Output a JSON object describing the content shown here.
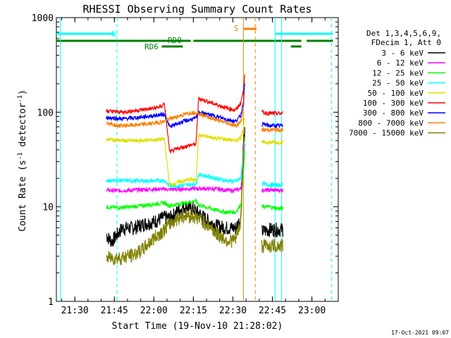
{
  "chart_data": {
    "type": "line",
    "title": "RHESSI Observing Summary Count Rates",
    "xlabel": "Start Time (19-Nov-10 21:28:02)",
    "ylabel_main": "Count Rate (s",
    "ylabel_sup1": "-1",
    "ylabel_mid": " detector",
    "ylabel_sup2": "-1",
    "ylabel_end": ")",
    "yscale": "log",
    "xlim": [
      "21:23",
      "23:10"
    ],
    "ylim": [
      1,
      1000
    ],
    "x_ticks": [
      "21:30",
      "21:45",
      "22:00",
      "22:15",
      "22:30",
      "22:45",
      "23:00"
    ],
    "y_ticks": [
      "1",
      "10",
      "100",
      "1000"
    ],
    "footer": "17-Oct-2021 09:07",
    "legend_header": [
      "Det 1,3,4,5,6,9,",
      "FDecim 1, Att 0"
    ],
    "series": [
      {
        "name": "3 - 6 keV",
        "color": "#000000",
        "points": [
          [
            "21:42",
            5.0
          ],
          [
            "21:44",
            4.3
          ],
          [
            "21:48",
            6.0
          ],
          [
            "21:52",
            6.0
          ],
          [
            "21:56",
            6.6
          ],
          [
            "22:00",
            7.0
          ],
          [
            "22:04",
            7.8
          ],
          [
            "22:06",
            7.6
          ],
          [
            "22:09",
            9.0
          ],
          [
            "22:12",
            10.2
          ],
          [
            "22:15",
            9.5
          ],
          [
            "22:18",
            8.2
          ],
          [
            "22:21",
            7.0
          ],
          [
            "22:24",
            6.3
          ],
          [
            "22:28",
            6.0
          ],
          [
            "22:31",
            6.0
          ],
          [
            "22:33",
            7.5
          ],
          [
            "22:34",
            48
          ],
          [
            "22:34.5",
            60
          ]
        ],
        "points2": [
          [
            "22:41",
            5.5
          ],
          [
            "22:44",
            5.8
          ],
          [
            "22:47",
            5.8
          ],
          [
            "22:49",
            5.8
          ]
        ]
      },
      {
        "name": "6 - 12 keV",
        "color": "#ff00ff",
        "points": [
          [
            "21:42",
            15
          ],
          [
            "21:46",
            14.8
          ],
          [
            "21:52",
            15
          ],
          [
            "21:58",
            15.3
          ],
          [
            "22:04",
            15.4
          ],
          [
            "22:06",
            15.2
          ],
          [
            "22:12",
            15.5
          ],
          [
            "22:18",
            15.6
          ],
          [
            "22:24",
            15.4
          ],
          [
            "22:30",
            14.8
          ],
          [
            "22:33",
            15.5
          ],
          [
            "22:34",
            30
          ],
          [
            "22:34.5",
            48
          ]
        ],
        "points2": [
          [
            "22:41",
            15
          ],
          [
            "22:44",
            15
          ],
          [
            "22:47",
            15
          ],
          [
            "22:49",
            15
          ]
        ]
      },
      {
        "name": "12 - 25 keV",
        "color": "#00ff00",
        "points": [
          [
            "21:42",
            10
          ],
          [
            "21:46",
            9.8
          ],
          [
            "21:52",
            10
          ],
          [
            "21:58",
            10.5
          ],
          [
            "22:04",
            11
          ],
          [
            "22:06",
            10.2
          ],
          [
            "22:10",
            10.8
          ],
          [
            "22:16",
            11.5
          ],
          [
            "22:17",
            10.5
          ],
          [
            "22:22",
            9.5
          ],
          [
            "22:27",
            8.8
          ],
          [
            "22:31",
            8.8
          ],
          [
            "22:33",
            10.5
          ],
          [
            "22:34",
            22
          ],
          [
            "22:34.5",
            40
          ]
        ],
        "points2": [
          [
            "22:41",
            10
          ],
          [
            "22:44",
            10
          ],
          [
            "22:47",
            9.6
          ],
          [
            "22:49",
            9.6
          ]
        ]
      },
      {
        "name": "25 - 50 keV",
        "color": "#00ffff",
        "points": [
          [
            "21:42",
            19
          ],
          [
            "21:48",
            19
          ],
          [
            "21:54",
            18.8
          ],
          [
            "22:00",
            18.8
          ],
          [
            "22:04",
            19
          ],
          [
            "22:06",
            16.5
          ],
          [
            "22:12",
            17
          ],
          [
            "22:16",
            17.5
          ],
          [
            "22:17",
            22
          ],
          [
            "22:22",
            20.5
          ],
          [
            "22:27",
            19
          ],
          [
            "22:31",
            18.5
          ],
          [
            "22:33",
            20
          ],
          [
            "22:34",
            35
          ],
          [
            "22:34.5",
            55
          ]
        ],
        "points2": [
          [
            "22:41",
            17.5
          ],
          [
            "22:44",
            17
          ],
          [
            "22:47",
            17
          ],
          [
            "22:49",
            17
          ]
        ]
      },
      {
        "name": "50 - 100 keV",
        "color": "#e0e000",
        "points": [
          [
            "21:42",
            52
          ],
          [
            "21:48",
            50
          ],
          [
            "21:54",
            50
          ],
          [
            "22:00",
            51
          ],
          [
            "22:04",
            52
          ],
          [
            "22:06",
            17
          ],
          [
            "22:10",
            18.5
          ],
          [
            "22:14",
            19.5
          ],
          [
            "22:16",
            19
          ],
          [
            "22:17",
            57
          ],
          [
            "22:22",
            54
          ],
          [
            "22:27",
            52
          ],
          [
            "22:31",
            50
          ],
          [
            "22:33",
            54
          ],
          [
            "22:34",
            70
          ],
          [
            "22:34.5",
            90
          ]
        ],
        "points2": [
          [
            "22:41",
            48
          ],
          [
            "22:44",
            48
          ],
          [
            "22:47",
            48
          ],
          [
            "22:49",
            48
          ]
        ]
      },
      {
        "name": "100 - 300 keV",
        "color": "#ff0000",
        "points": [
          [
            "21:42",
            103
          ],
          [
            "21:48",
            100
          ],
          [
            "21:54",
            105
          ],
          [
            "22:00",
            110
          ],
          [
            "22:03",
            115
          ],
          [
            "22:04",
            125
          ],
          [
            "22:06",
            38
          ],
          [
            "22:10",
            42
          ],
          [
            "22:14",
            45
          ],
          [
            "22:16",
            46
          ],
          [
            "22:17",
            140
          ],
          [
            "22:22",
            125
          ],
          [
            "22:27",
            112
          ],
          [
            "22:31",
            105
          ],
          [
            "22:33",
            125
          ],
          [
            "22:34",
            170
          ],
          [
            "22:34.5",
            260
          ]
        ],
        "points2": [
          [
            "22:41",
            100
          ],
          [
            "22:44",
            97
          ],
          [
            "22:47",
            97
          ],
          [
            "22:49",
            97
          ]
        ]
      },
      {
        "name": "300 - 800 keV",
        "color": "#0000ff",
        "points": [
          [
            "21:42",
            88
          ],
          [
            "21:48",
            85
          ],
          [
            "21:54",
            88
          ],
          [
            "22:00",
            92
          ],
          [
            "22:04",
            95
          ],
          [
            "22:06",
            70
          ],
          [
            "22:10",
            78
          ],
          [
            "22:14",
            84
          ],
          [
            "22:16",
            86
          ],
          [
            "22:17",
            100
          ],
          [
            "22:22",
            93
          ],
          [
            "22:27",
            85
          ],
          [
            "22:31",
            80
          ],
          [
            "22:33",
            92
          ],
          [
            "22:34",
            130
          ],
          [
            "22:34.5",
            200
          ]
        ],
        "points2": [
          [
            "22:41",
            75
          ],
          [
            "22:44",
            72
          ],
          [
            "22:47",
            72
          ],
          [
            "22:49",
            72
          ]
        ]
      },
      {
        "name": "800 - 7000 keV",
        "color": "#ff8000",
        "points": [
          [
            "21:42",
            78
          ],
          [
            "21:46",
            72
          ],
          [
            "21:52",
            73
          ],
          [
            "21:58",
            75
          ],
          [
            "22:04",
            80
          ],
          [
            "22:06",
            85
          ],
          [
            "22:10",
            92
          ],
          [
            "22:14",
            99
          ],
          [
            "22:16",
            99
          ],
          [
            "22:17",
            97
          ],
          [
            "22:22",
            86
          ],
          [
            "22:27",
            78
          ],
          [
            "22:31",
            72
          ],
          [
            "22:33",
            78
          ],
          [
            "22:34",
            110
          ],
          [
            "22:34.5",
            160
          ]
        ],
        "points2": [
          [
            "22:41",
            65
          ],
          [
            "22:44",
            65
          ],
          [
            "22:47",
            65
          ],
          [
            "22:49",
            65
          ]
        ]
      },
      {
        "name": "7000 - 15000 keV",
        "color": "#808000",
        "points": [
          [
            "21:42",
            2.9
          ],
          [
            "21:47",
            2.9
          ],
          [
            "21:52",
            3.1
          ],
          [
            "21:56",
            3.6
          ],
          [
            "22:00",
            4.7
          ],
          [
            "22:04",
            5.8
          ],
          [
            "22:06",
            6.6
          ],
          [
            "22:09",
            7.6
          ],
          [
            "22:12",
            8.2
          ],
          [
            "22:15",
            8.0
          ],
          [
            "22:18",
            7.3
          ],
          [
            "22:21",
            6.3
          ],
          [
            "22:24",
            5.2
          ],
          [
            "22:28",
            4.4
          ],
          [
            "22:31",
            4.5
          ],
          [
            "22:33",
            7
          ],
          [
            "22:34",
            40
          ],
          [
            "22:34.5",
            60
          ]
        ],
        "points2": [
          [
            "22:41",
            3.9
          ],
          [
            "22:44",
            3.9
          ],
          [
            "22:47",
            3.9
          ],
          [
            "22:49",
            3.9
          ]
        ]
      }
    ],
    "flags": {
      "N_label": "N",
      "S_label": "S",
      "RD0_label": "RD0",
      "RD6_label": "RD6"
    }
  }
}
